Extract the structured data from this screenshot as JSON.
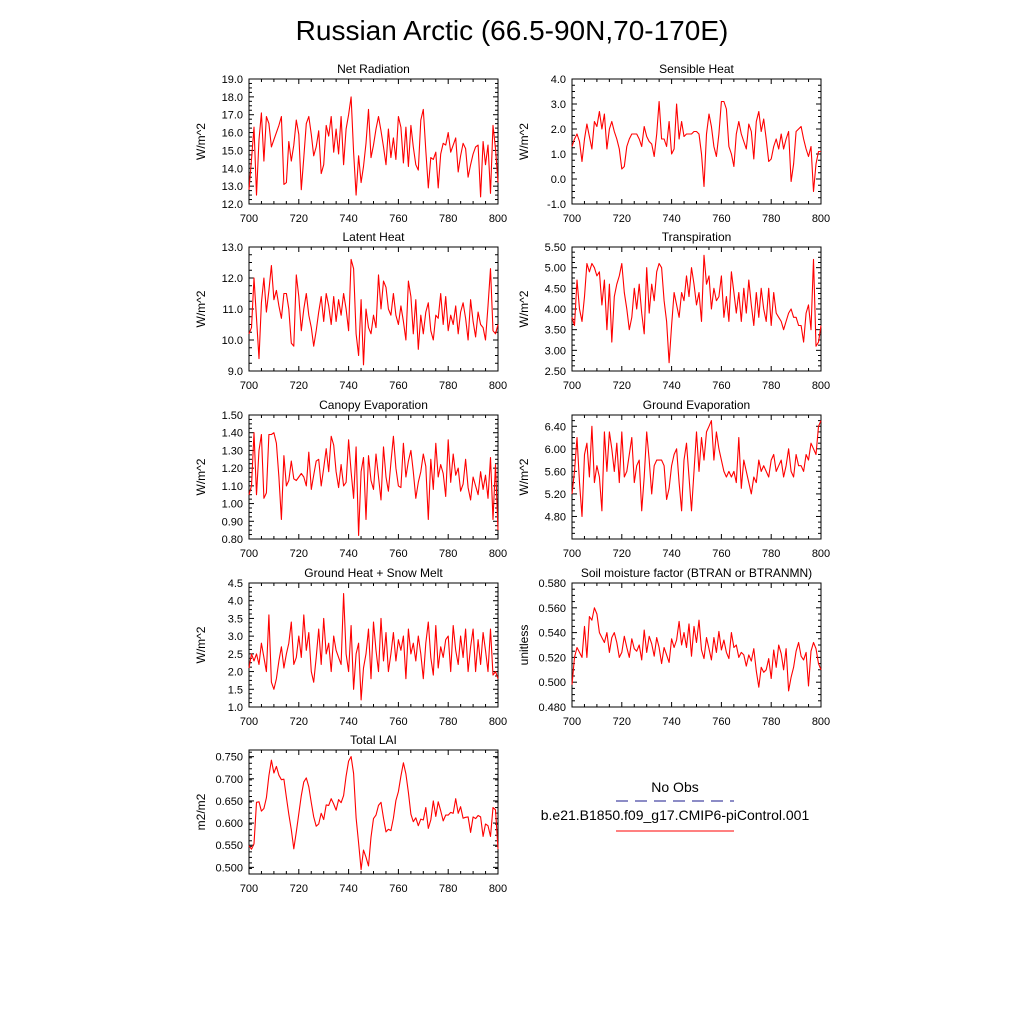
{
  "figure_title": "Russian Arctic (66.5-90N,70-170E)",
  "legend": {
    "entries": [
      {
        "label": "No Obs",
        "color": "#1a1a8c",
        "dash": "dashed"
      },
      {
        "label": "b.e21.B1850.f09_g17.CMIP6-piControl.001",
        "color": "#ff0000",
        "dash": "solid"
      }
    ]
  },
  "series_color": "#ff0000",
  "chart_data": [
    {
      "type": "line",
      "title": "Net Radiation",
      "ylabel": "W/m^2",
      "xlim": [
        700,
        800
      ],
      "ylim": [
        12.0,
        19.0
      ],
      "yticks": [
        "12.0",
        "13.0",
        "14.0",
        "15.0",
        "16.0",
        "17.0",
        "18.0",
        "19.0"
      ],
      "xticks": [
        "700",
        "720",
        "740",
        "760",
        "780",
        "800"
      ],
      "x_start": 700,
      "values": [
        12.8,
        14.5,
        16.3,
        12.5,
        15.6,
        17.1,
        14.4,
        16.9,
        16.5,
        15.2,
        15.6,
        16.0,
        16.4,
        16.9,
        13.1,
        13.2,
        15.5,
        14.4,
        15.3,
        16.7,
        15.9,
        12.8,
        14.6,
        16.5,
        16.9,
        15.9,
        14.7,
        15.2,
        16.1,
        13.7,
        14.2,
        16.4,
        15.8,
        16.9,
        14.9,
        16.2,
        14.8,
        16.9,
        14.2,
        16.2,
        17.0,
        18.0,
        14.9,
        12.5,
        14.7,
        13.2,
        14.1,
        15.4,
        17.3,
        14.6,
        15.3,
        16.2,
        16.9,
        16.1,
        15.2,
        14.2,
        16.2,
        14.6,
        15.7,
        14.5,
        16.9,
        16.3,
        14.3,
        16.3,
        14.1,
        16.4,
        15.2,
        14.2,
        13.9,
        16.7,
        17.3,
        15.0,
        12.9,
        14.6,
        14.5,
        14.9,
        12.9,
        14.8,
        15.4,
        15.3,
        16.0,
        14.9,
        15.3,
        15.7,
        13.8,
        14.7,
        15.4,
        15.1,
        13.5,
        14.2,
        14.8,
        15.2,
        15.3,
        12.4,
        15.5,
        14.2,
        15.3,
        12.6,
        16.4,
        15.1,
        13.2
      ]
    },
    {
      "type": "line",
      "title": "Sensible Heat",
      "ylabel": "W/m^2",
      "xlim": [
        700,
        800
      ],
      "ylim": [
        -1.0,
        4.0
      ],
      "yticks": [
        "-1.0",
        "0.0",
        "1.0",
        "2.0",
        "3.0",
        "4.0"
      ],
      "xticks": [
        "700",
        "720",
        "740",
        "760",
        "780",
        "800"
      ],
      "x_start": 700,
      "values": [
        1.3,
        1.6,
        1.8,
        1.5,
        0.7,
        1.6,
        2.2,
        1.7,
        1.2,
        2.3,
        2.1,
        2.7,
        2.0,
        2.6,
        1.2,
        2.0,
        2.3,
        1.9,
        1.6,
        1.2,
        0.4,
        0.5,
        1.3,
        1.6,
        1.8,
        1.8,
        1.8,
        1.6,
        1.3,
        2.1,
        1.7,
        1.5,
        1.4,
        0.9,
        1.8,
        3.1,
        1.6,
        1.6,
        1.3,
        2.3,
        1.0,
        1.2,
        3.0,
        1.6,
        2.3,
        1.7,
        1.8,
        1.8,
        1.8,
        1.9,
        1.9,
        1.8,
        1.0,
        -0.3,
        1.8,
        2.6,
        2.1,
        1.3,
        0.9,
        1.8,
        3.1,
        3.1,
        2.8,
        1.3,
        1.0,
        0.5,
        1.8,
        2.3,
        1.8,
        1.5,
        1.2,
        2.2,
        1.9,
        0.8,
        2.3,
        2.7,
        1.9,
        2.4,
        1.6,
        0.7,
        0.8,
        1.3,
        1.6,
        1.2,
        1.8,
        1.2,
        1.6,
        1.9,
        -0.1,
        0.6,
        1.9,
        2.0,
        2.1,
        1.6,
        1.2,
        0.9,
        1.3,
        -0.5,
        0.6,
        1.1,
        1.1
      ]
    },
    {
      "type": "line",
      "title": "Latent Heat",
      "ylabel": "W/m^2",
      "xlim": [
        700,
        800
      ],
      "ylim": [
        9.0,
        13.0
      ],
      "yticks": [
        "9.0",
        "10.0",
        "11.0",
        "12.0",
        "13.0"
      ],
      "xticks": [
        "700",
        "720",
        "740",
        "760",
        "780",
        "800"
      ],
      "x_start": 700,
      "values": [
        10.2,
        10.4,
        12.0,
        10.7,
        9.4,
        11.2,
        12.0,
        10.9,
        11.6,
        12.4,
        11.3,
        11.6,
        11.1,
        10.7,
        11.5,
        11.5,
        11.0,
        9.9,
        9.8,
        12.1,
        11.4,
        10.3,
        11.0,
        11.5,
        10.8,
        10.4,
        9.8,
        10.3,
        10.9,
        11.4,
        10.6,
        11.5,
        11.1,
        10.5,
        11.4,
        10.6,
        11.3,
        10.8,
        11.5,
        11.0,
        10.3,
        12.6,
        12.3,
        10.2,
        9.5,
        11.3,
        9.2,
        11.0,
        10.4,
        10.2,
        10.8,
        10.4,
        12.1,
        11.0,
        11.9,
        11.7,
        11.0,
        10.8,
        11.5,
        10.8,
        10.5,
        11.1,
        10.6,
        10.0,
        11.9,
        11.4,
        10.2,
        11.3,
        9.7,
        10.8,
        10.2,
        10.9,
        11.2,
        10.3,
        10.0,
        10.8,
        10.7,
        11.5,
        10.5,
        11.4,
        10.3,
        10.8,
        10.5,
        11.1,
        10.2,
        10.9,
        11.2,
        10.7,
        10.0,
        11.3,
        10.6,
        10.1,
        10.9,
        10.5,
        10.4,
        10.0,
        11.1,
        12.3,
        10.3,
        10.2,
        10.5
      ]
    },
    {
      "type": "line",
      "title": "Transpiration",
      "ylabel": "W/m^2",
      "xlim": [
        700,
        800
      ],
      "ylim": [
        2.5,
        5.5
      ],
      "yticks": [
        "2.50",
        "3.00",
        "3.50",
        "4.00",
        "4.50",
        "5.00",
        "5.50"
      ],
      "xticks": [
        "700",
        "720",
        "740",
        "760",
        "780",
        "800"
      ],
      "x_start": 700,
      "values": [
        3.8,
        3.6,
        4.7,
        4.0,
        3.7,
        4.3,
        5.1,
        4.9,
        5.1,
        5.0,
        4.8,
        4.9,
        4.1,
        4.7,
        3.5,
        4.6,
        3.2,
        4.3,
        4.6,
        4.8,
        5.1,
        4.4,
        4.0,
        3.5,
        3.8,
        4.5,
        4.0,
        4.6,
        3.9,
        3.4,
        5.0,
        3.9,
        4.6,
        4.2,
        4.9,
        5.1,
        5.0,
        4.2,
        3.7,
        2.7,
        3.6,
        4.4,
        4.1,
        3.8,
        4.4,
        4.2,
        4.8,
        4.3,
        5.0,
        4.6,
        4.1,
        4.4,
        3.7,
        5.3,
        4.6,
        4.8,
        4.0,
        4.5,
        4.2,
        4.3,
        4.8,
        3.8,
        4.3,
        3.7,
        4.9,
        4.4,
        3.9,
        4.4,
        3.7,
        4.5,
        3.9,
        4.7,
        4.1,
        3.6,
        4.4,
        3.8,
        4.5,
        4.0,
        3.7,
        4.5,
        3.6,
        4.4,
        3.9,
        3.8,
        3.7,
        3.5,
        3.7,
        3.9,
        4.0,
        3.8,
        3.8,
        3.6,
        3.6,
        3.2,
        3.9,
        4.1,
        3.5,
        5.2,
        3.1,
        3.2,
        3.6
      ]
    },
    {
      "type": "line",
      "title": "Canopy Evaporation",
      "ylabel": "W/m^2",
      "xlim": [
        700,
        800
      ],
      "ylim": [
        0.8,
        1.5
      ],
      "yticks": [
        "0.80",
        "0.90",
        "1.00",
        "1.10",
        "1.20",
        "1.30",
        "1.40",
        "1.50"
      ],
      "xticks": [
        "700",
        "720",
        "740",
        "760",
        "780",
        "800"
      ],
      "x_start": 700,
      "values": [
        1.05,
        1.1,
        1.4,
        1.05,
        1.3,
        1.39,
        1.03,
        1.06,
        1.39,
        1.39,
        1.4,
        1.34,
        1.15,
        0.91,
        1.27,
        1.1,
        1.13,
        1.24,
        1.14,
        1.13,
        1.15,
        1.17,
        1.15,
        1.1,
        1.29,
        1.08,
        1.16,
        1.24,
        1.25,
        1.1,
        1.2,
        1.31,
        1.18,
        1.38,
        1.33,
        1.18,
        1.09,
        1.22,
        1.1,
        1.12,
        1.36,
        1.18,
        1.03,
        1.32,
        0.82,
        1.18,
        1.26,
        0.91,
        1.27,
        1.13,
        1.08,
        1.28,
        1.15,
        1.02,
        1.32,
        1.15,
        1.07,
        1.23,
        1.38,
        1.2,
        1.1,
        1.09,
        1.34,
        1.15,
        1.24,
        1.3,
        1.18,
        1.03,
        1.12,
        1.18,
        1.28,
        1.21,
        0.91,
        1.25,
        1.08,
        1.34,
        1.15,
        1.22,
        1.17,
        1.04,
        1.36,
        1.12,
        1.28,
        1.16,
        1.2,
        1.07,
        1.11,
        1.25,
        1.09,
        1.02,
        1.15,
        1.1,
        1.05,
        1.18,
        1.08,
        1.16,
        1.03,
        1.26,
        0.91,
        1.22,
        0.85
      ]
    },
    {
      "type": "line",
      "title": "Ground Evaporation",
      "ylabel": "W/m^2",
      "xlim": [
        700,
        800
      ],
      "ylim": [
        4.4,
        6.6
      ],
      "yticks": [
        "4.80",
        "5.20",
        "5.60",
        "6.00",
        "6.40"
      ],
      "xticks": [
        "700",
        "720",
        "740",
        "760",
        "780",
        "800"
      ],
      "x_start": 700,
      "values": [
        5.2,
        5.6,
        6.2,
        5.4,
        4.8,
        5.9,
        6.1,
        5.5,
        6.4,
        5.4,
        5.7,
        5.5,
        4.9,
        6.3,
        5.6,
        6.3,
        6.0,
        5.6,
        6.1,
        5.4,
        6.3,
        5.5,
        5.6,
        5.9,
        6.2,
        5.4,
        5.7,
        5.8,
        4.9,
        5.5,
        6.3,
        5.8,
        5.2,
        5.7,
        5.8,
        5.8,
        5.8,
        5.7,
        5.1,
        5.3,
        5.7,
        5.9,
        6.0,
        5.4,
        4.9,
        5.8,
        6.1,
        5.5,
        4.9,
        5.6,
        6.3,
        5.6,
        6.2,
        5.8,
        6.3,
        6.4,
        6.5,
        5.8,
        6.3,
        6.0,
        5.8,
        5.6,
        5.5,
        5.6,
        5.5,
        5.6,
        5.4,
        6.2,
        5.3,
        5.8,
        5.6,
        5.4,
        5.2,
        5.5,
        5.4,
        5.8,
        5.6,
        5.7,
        5.6,
        5.5,
        5.8,
        5.9,
        5.6,
        5.7,
        5.8,
        5.5,
        5.7,
        6.0,
        5.6,
        5.5,
        5.9,
        5.7,
        5.7,
        5.6,
        5.9,
        5.8,
        6.1,
        6.0,
        5.9,
        6.4,
        6.5
      ]
    },
    {
      "type": "line",
      "title": "Ground Heat + Snow Melt",
      "ylabel": "W/m^2",
      "xlim": [
        700,
        800
      ],
      "ylim": [
        1.0,
        4.5
      ],
      "yticks": [
        "1.0",
        "1.5",
        "2.0",
        "2.5",
        "3.0",
        "3.5",
        "4.0",
        "4.5"
      ],
      "xticks": [
        "700",
        "720",
        "740",
        "760",
        "780",
        "800"
      ],
      "x_start": 700,
      "values": [
        2.1,
        2.5,
        2.3,
        2.5,
        2.2,
        2.8,
        2.4,
        2.0,
        3.6,
        1.7,
        1.5,
        1.8,
        2.3,
        2.7,
        2.1,
        2.5,
        2.8,
        3.4,
        2.2,
        2.4,
        3.0,
        2.4,
        3.6,
        2.6,
        3.1,
        2.0,
        1.7,
        2.4,
        3.2,
        2.2,
        3.5,
        2.5,
        2.8,
        2.0,
        3.0,
        2.6,
        2.4,
        2.2,
        4.2,
        2.5,
        2.0,
        3.3,
        1.5,
        2.5,
        2.8,
        1.2,
        2.1,
        2.5,
        3.2,
        1.8,
        3.4,
        2.6,
        2.0,
        3.5,
        2.3,
        3.1,
        2.0,
        2.5,
        3.1,
        2.3,
        2.9,
        2.6,
        3.0,
        1.8,
        3.2,
        2.5,
        2.8,
        2.3,
        3.0,
        2.5,
        1.8,
        2.8,
        3.4,
        2.4,
        1.9,
        3.3,
        2.1,
        2.7,
        2.4,
        2.9,
        3.0,
        2.0,
        3.3,
        2.6,
        2.2,
        3.0,
        2.4,
        3.2,
        2.0,
        2.7,
        3.2,
        2.0,
        2.9,
        2.2,
        3.1,
        2.6,
        2.0,
        3.2,
        1.9,
        2.0,
        1.8
      ]
    },
    {
      "type": "line",
      "title": "Soil moisture factor (BTRAN or BTRANMN)",
      "ylabel": "unitless",
      "xlim": [
        700,
        800
      ],
      "ylim": [
        0.48,
        0.58
      ],
      "yticks": [
        "0.480",
        "0.500",
        "0.520",
        "0.540",
        "0.560",
        "0.580"
      ],
      "xticks": [
        "700",
        "720",
        "740",
        "760",
        "780",
        "800"
      ],
      "x_start": 700,
      "values": [
        0.498,
        0.52,
        0.528,
        0.524,
        0.52,
        0.545,
        0.52,
        0.553,
        0.55,
        0.56,
        0.555,
        0.54,
        0.536,
        0.532,
        0.54,
        0.524,
        0.536,
        0.54,
        0.532,
        0.52,
        0.524,
        0.537,
        0.528,
        0.52,
        0.535,
        0.527,
        0.525,
        0.53,
        0.518,
        0.542,
        0.524,
        0.537,
        0.531,
        0.521,
        0.536,
        0.528,
        0.515,
        0.528,
        0.522,
        0.516,
        0.535,
        0.528,
        0.534,
        0.549,
        0.53,
        0.54,
        0.528,
        0.547,
        0.521,
        0.545,
        0.532,
        0.55,
        0.526,
        0.519,
        0.536,
        0.527,
        0.518,
        0.536,
        0.524,
        0.541,
        0.526,
        0.534,
        0.524,
        0.519,
        0.54,
        0.528,
        0.53,
        0.52,
        0.524,
        0.522,
        0.513,
        0.522,
        0.517,
        0.527,
        0.509,
        0.496,
        0.512,
        0.508,
        0.51,
        0.519,
        0.503,
        0.526,
        0.512,
        0.53,
        0.523,
        0.51,
        0.527,
        0.493,
        0.504,
        0.512,
        0.525,
        0.532,
        0.521,
        0.518,
        0.524,
        0.497,
        0.525,
        0.532,
        0.527,
        0.515,
        0.51
      ]
    },
    {
      "type": "line",
      "title": "Total LAI",
      "ylabel": "m2/m2",
      "xlim": [
        700,
        800
      ],
      "ylim": [
        0.485,
        0.765
      ],
      "yticks": [
        "0.500",
        "0.550",
        "0.600",
        "0.650",
        "0.700",
        "0.750"
      ],
      "xticks": [
        "700",
        "720",
        "740",
        "760",
        "780",
        "800"
      ],
      "x_start": 700,
      "values": [
        0.549,
        0.541,
        0.553,
        0.647,
        0.648,
        0.627,
        0.633,
        0.657,
        0.707,
        0.742,
        0.713,
        0.728,
        0.708,
        0.698,
        0.699,
        0.658,
        0.62,
        0.585,
        0.542,
        0.58,
        0.621,
        0.662,
        0.693,
        0.702,
        0.682,
        0.646,
        0.614,
        0.593,
        0.598,
        0.622,
        0.608,
        0.641,
        0.64,
        0.655,
        0.643,
        0.629,
        0.653,
        0.646,
        0.662,
        0.706,
        0.74,
        0.75,
        0.712,
        0.612,
        0.555,
        0.495,
        0.539,
        0.523,
        0.503,
        0.568,
        0.61,
        0.618,
        0.64,
        0.647,
        0.611,
        0.58,
        0.586,
        0.583,
        0.611,
        0.651,
        0.671,
        0.706,
        0.736,
        0.711,
        0.669,
        0.62,
        0.603,
        0.612,
        0.594,
        0.609,
        0.607,
        0.635,
        0.588,
        0.607,
        0.65,
        0.615,
        0.648,
        0.628,
        0.605,
        0.618,
        0.618,
        0.624,
        0.622,
        0.655,
        0.622,
        0.637,
        0.611,
        0.613,
        0.614,
        0.579,
        0.614,
        0.61,
        0.617,
        0.614,
        0.57,
        0.598,
        0.594,
        0.57,
        0.635,
        0.63,
        0.541
      ]
    }
  ]
}
